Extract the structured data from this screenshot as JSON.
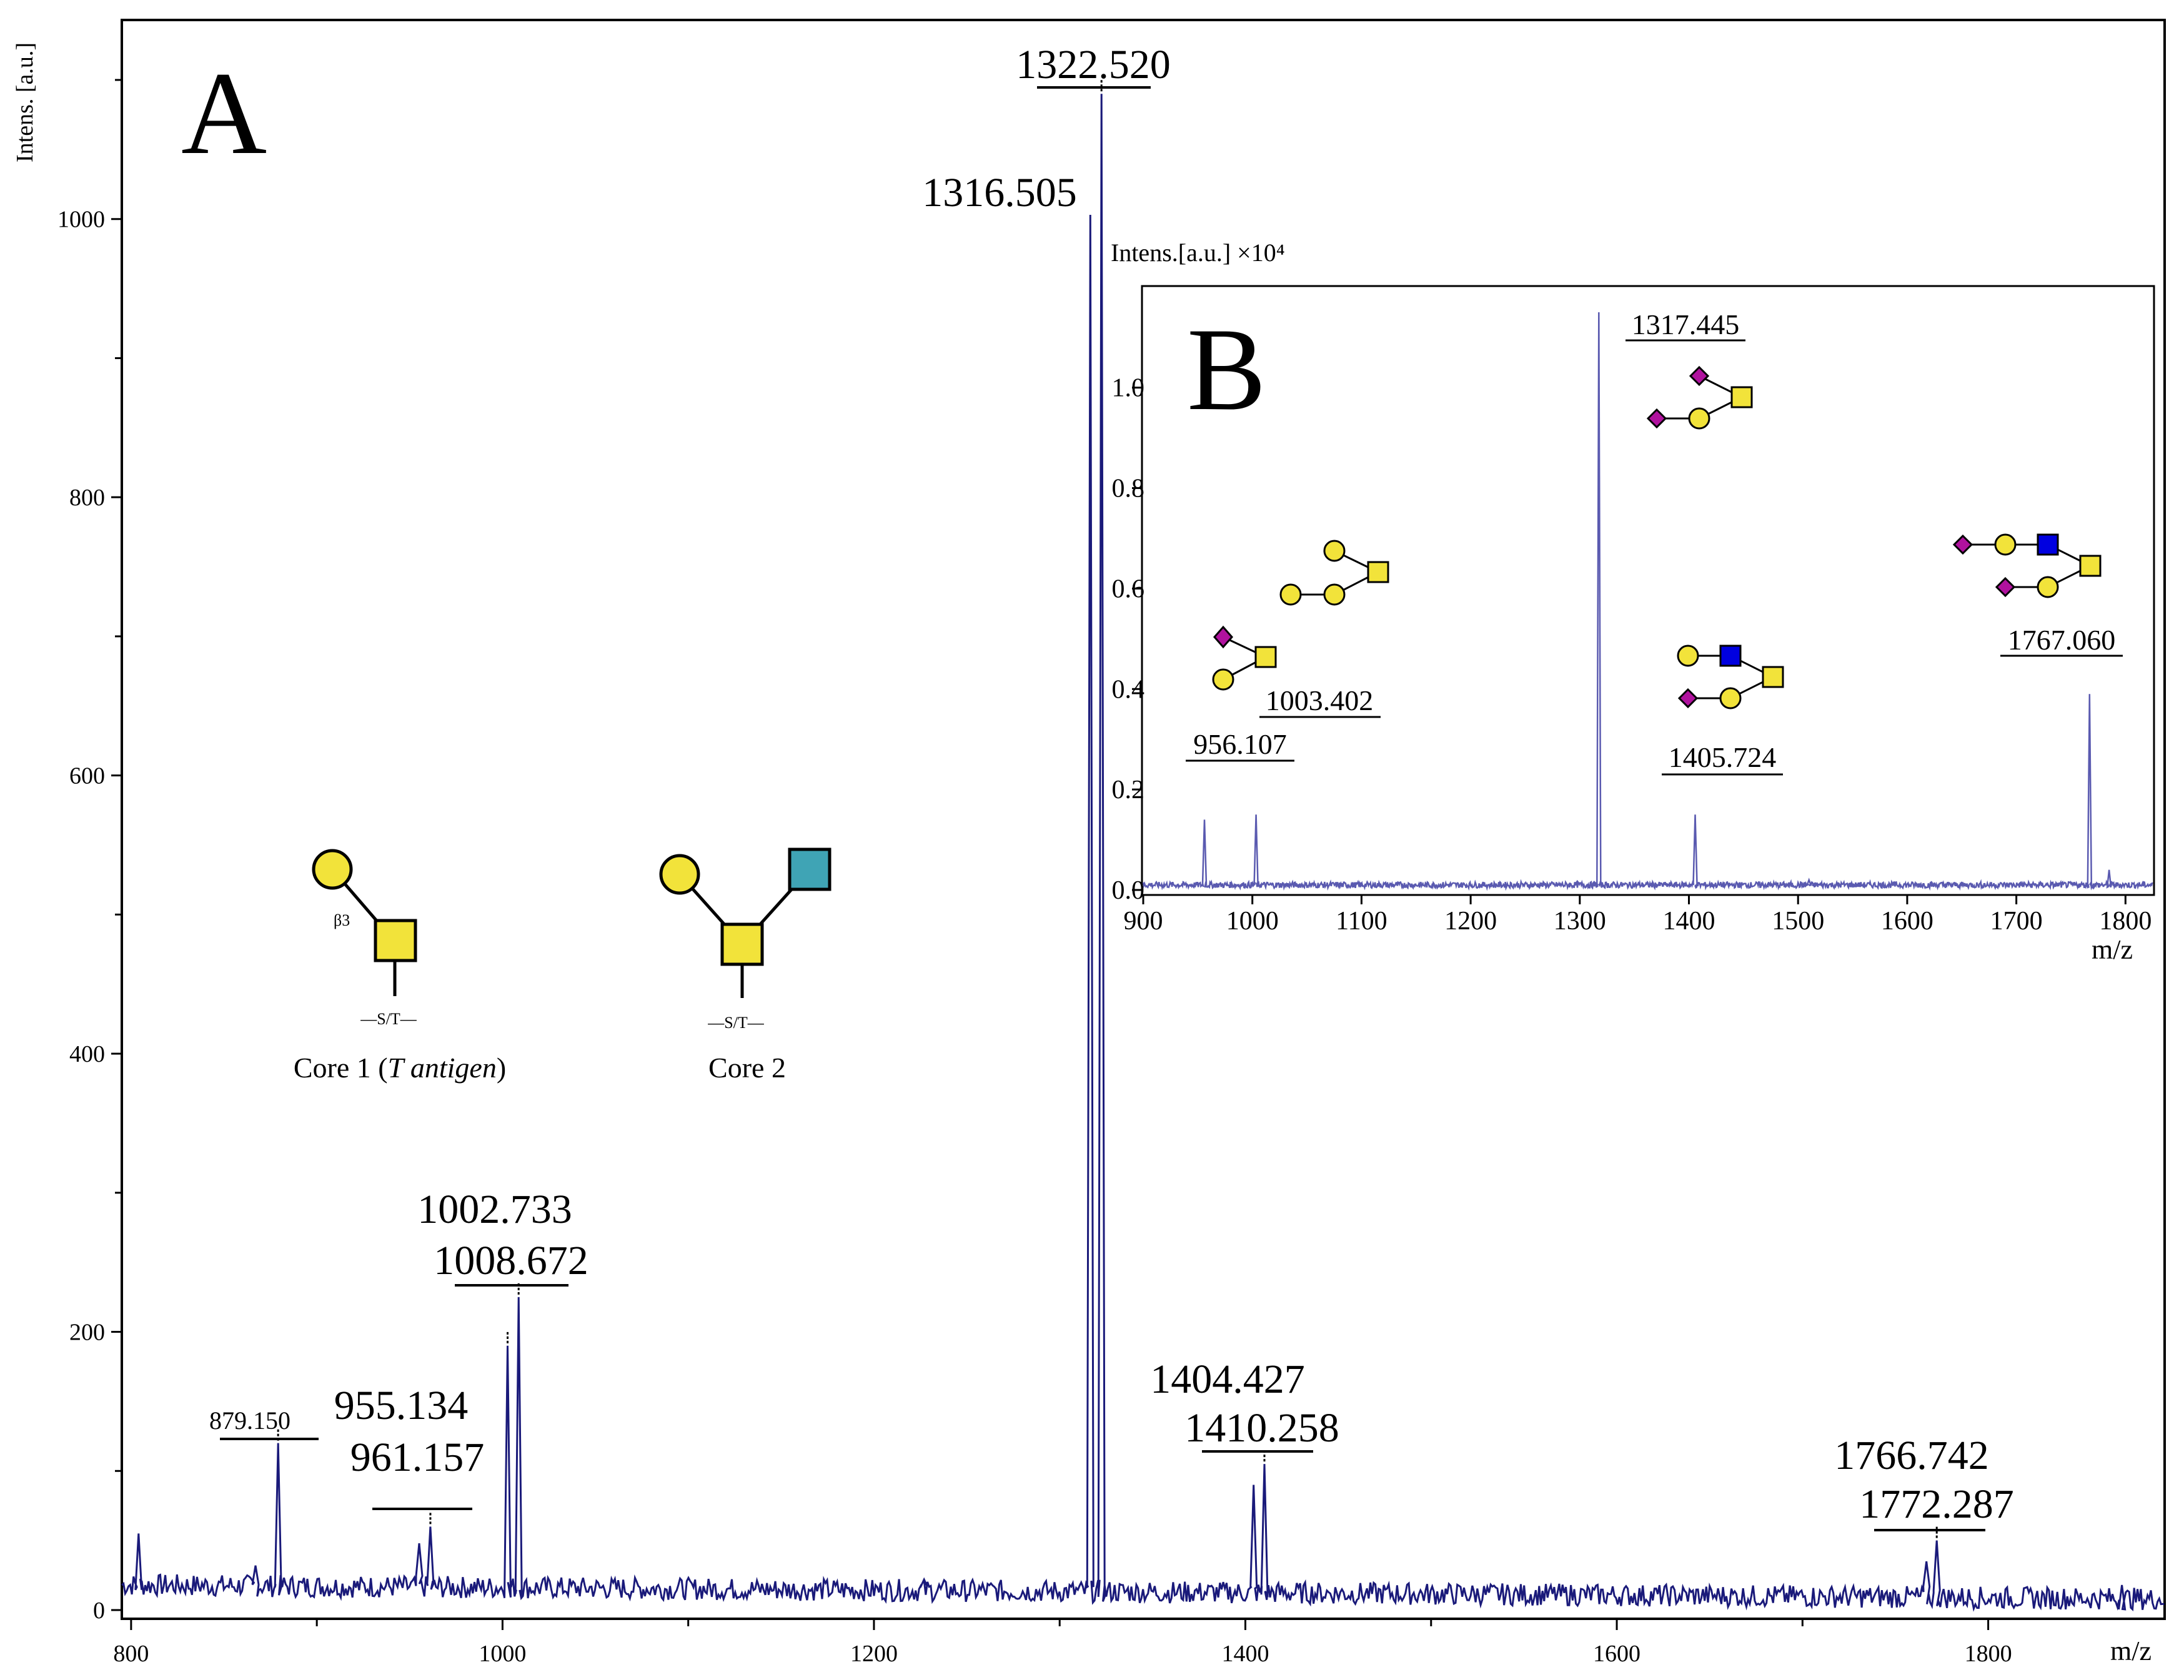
{
  "colors": {
    "spectrum": "#1a1a7a",
    "inset_spectrum": "#5a5ab0",
    "galactose": "#f2e33a",
    "galnac": "#f2e33a",
    "glcnac_core2": "#3fa4b5",
    "glcnac": "#0000e0",
    "neu5ac": "#b0129e"
  },
  "chart_data": [
    {
      "id": "A",
      "type": "line",
      "panel_label": "A",
      "ylabel": "Intens. [a.u.]",
      "xlabel": "m/z",
      "xlim": [
        795,
        1895
      ],
      "ylim": [
        0,
        1100
      ],
      "xticks": [
        800,
        1000,
        1200,
        1400,
        1600,
        1800
      ],
      "yticks": [
        0,
        200,
        400,
        600,
        800,
        1000
      ],
      "peaks": [
        {
          "mz": 804,
          "intensity": 55
        },
        {
          "mz": 867,
          "intensity": 32
        },
        {
          "mz": 879.15,
          "intensity": 120
        },
        {
          "mz": 955.134,
          "intensity": 48
        },
        {
          "mz": 961.157,
          "intensity": 60
        },
        {
          "mz": 1002.733,
          "intensity": 190
        },
        {
          "mz": 1008.672,
          "intensity": 225
        },
        {
          "mz": 1227,
          "intensity": 22
        },
        {
          "mz": 1316.505,
          "intensity": 1003
        },
        {
          "mz": 1322.52,
          "intensity": 1090
        },
        {
          "mz": 1404.427,
          "intensity": 90
        },
        {
          "mz": 1410.258,
          "intensity": 105
        },
        {
          "mz": 1766.742,
          "intensity": 35
        },
        {
          "mz": 1772.287,
          "intensity": 50
        },
        {
          "mz": 1872,
          "intensity": 18
        }
      ],
      "labels": [
        {
          "text": "879.150",
          "size": "small"
        },
        {
          "text": "955.134",
          "size": "big"
        },
        {
          "text": "961.157",
          "size": "big"
        },
        {
          "text": "1002.733",
          "size": "big"
        },
        {
          "text": "1008.672",
          "size": "big"
        },
        {
          "text": "1316.505",
          "size": "big"
        },
        {
          "text": "1322.520",
          "size": "big"
        },
        {
          "text": "1404.427",
          "size": "big"
        },
        {
          "text": "1410.258",
          "size": "big"
        },
        {
          "text": "1766.742",
          "size": "big"
        },
        {
          "text": "1772.287",
          "size": "big"
        }
      ],
      "annotations": {
        "core1_label": "Core 1 (",
        "core1_italic": "T antigen",
        "core1_close": ")",
        "core1_linkage": "β3",
        "core1_site": "—S/T—",
        "core2_label": "Core 2",
        "core2_site": "—S/T—"
      }
    },
    {
      "id": "B",
      "type": "line",
      "panel_label": "B",
      "ylabel": "Intens.[a.u.] ×10⁴",
      "xlabel": "m/z",
      "xlim": [
        900,
        1825
      ],
      "ylim": [
        0,
        1.15
      ],
      "xticks": [
        900,
        1000,
        1100,
        1200,
        1300,
        1400,
        1500,
        1600,
        1700,
        1800
      ],
      "yticks": [
        0.0,
        0.2,
        0.4,
        0.6,
        0.8,
        1.0
      ],
      "ytick_labels": [
        "0.0",
        "0.2",
        "0.4",
        "0.6",
        "0.8",
        "1.0"
      ],
      "peaks": [
        {
          "mz": 956.107,
          "intensity": 0.14
        },
        {
          "mz": 1003.402,
          "intensity": 0.15
        },
        {
          "mz": 1317.445,
          "intensity": 1.15
        },
        {
          "mz": 1405.724,
          "intensity": 0.15
        },
        {
          "mz": 1510,
          "intensity": 0.02
        },
        {
          "mz": 1767.06,
          "intensity": 0.39
        },
        {
          "mz": 1785,
          "intensity": 0.04
        }
      ],
      "labels": [
        {
          "text": "956.107"
        },
        {
          "text": "1003.402"
        },
        {
          "text": "1317.445"
        },
        {
          "text": "1405.724"
        },
        {
          "text": "1767.060"
        }
      ]
    }
  ]
}
